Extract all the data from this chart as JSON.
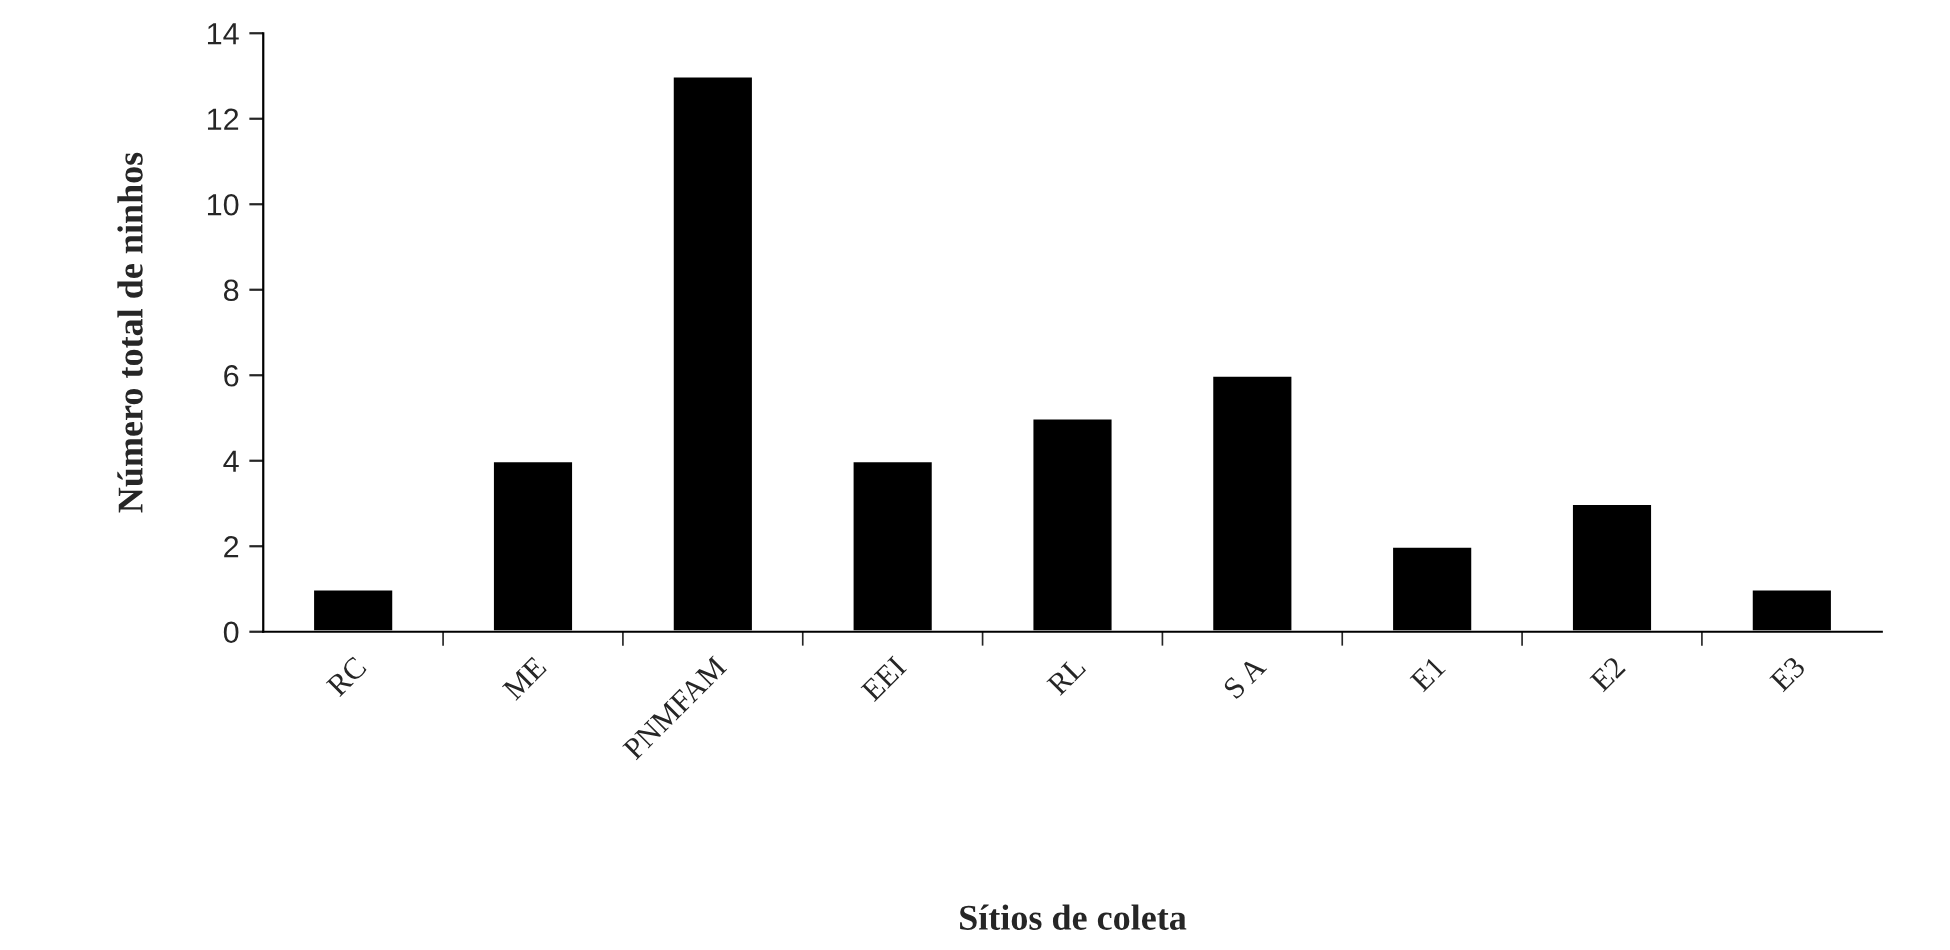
{
  "chart_data": {
    "type": "bar",
    "xlabel": "Sítios de coleta",
    "ylabel": "Número total de ninhos",
    "categories": [
      "RC",
      "ME",
      "PNMFAM",
      "EEI",
      "RL",
      "S A",
      "E1",
      "E2",
      "E3"
    ],
    "values": [
      1,
      4,
      13,
      4,
      5,
      6,
      2,
      3,
      1
    ],
    "color": "#000000",
    "ylim": [
      0,
      14
    ],
    "yticks": [
      0,
      2,
      4,
      6,
      8,
      10,
      12,
      14
    ],
    "grid": false,
    "legend": false
  }
}
